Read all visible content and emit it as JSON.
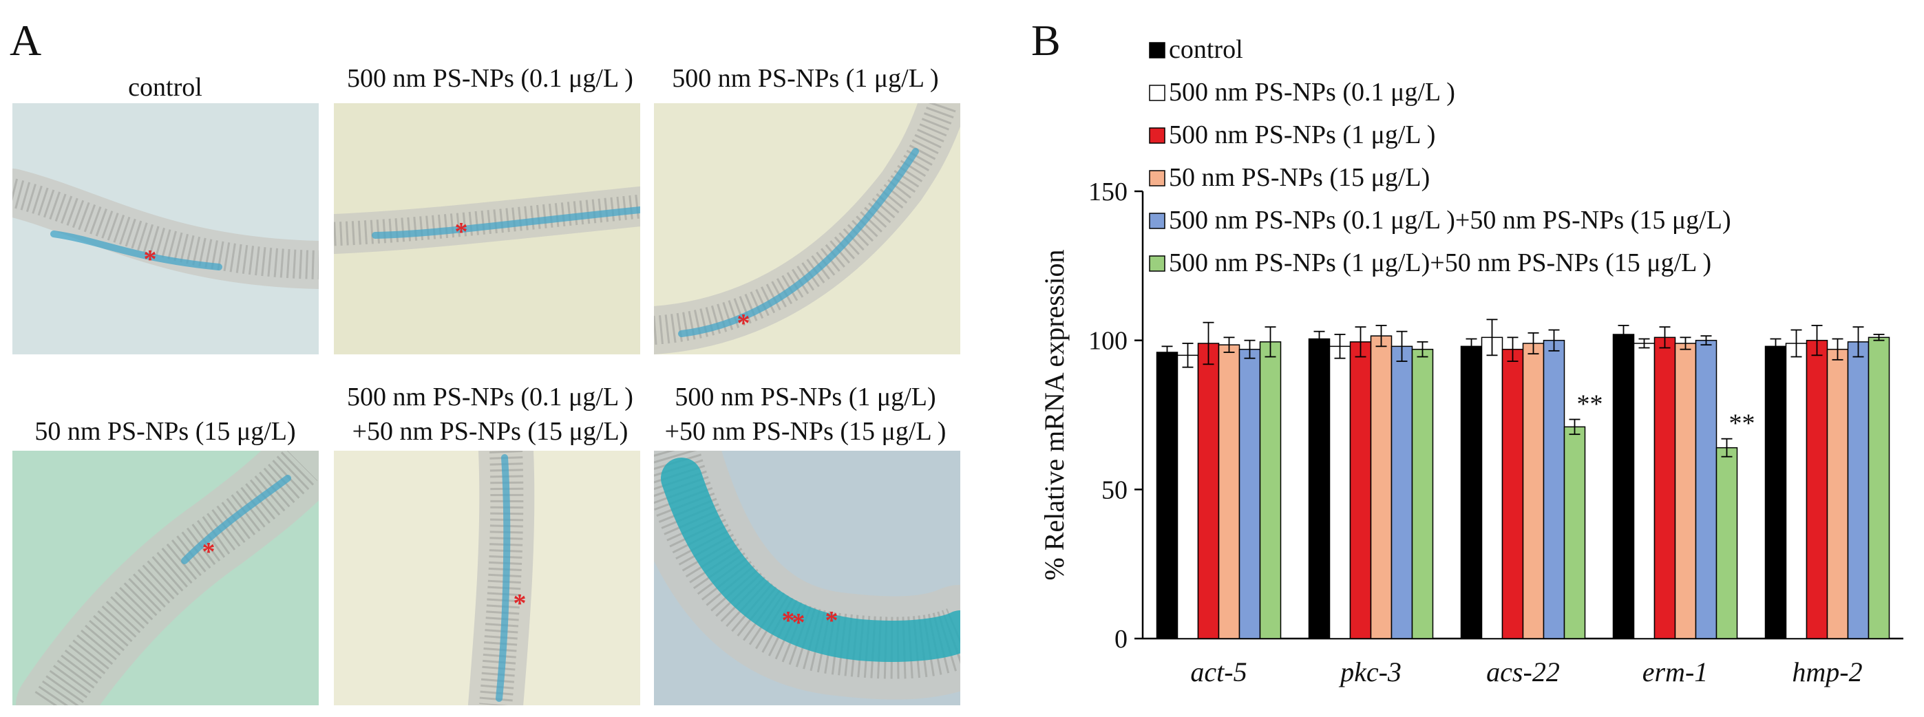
{
  "panel_a": {
    "letter": "A",
    "images": [
      {
        "caption": [
          "control"
        ],
        "bg": "#d5e2e3"
      },
      {
        "caption": [
          "500 nm PS-NPs (0.1 μg/L )"
        ],
        "bg": "#e6e6cc"
      },
      {
        "caption": [
          "500 nm PS-NPs (1 μg/L )"
        ],
        "bg": "#e8e8d0"
      },
      {
        "caption": [
          "50 nm PS-NPs (15 μg/L)"
        ],
        "bg": "#b6dcc8"
      },
      {
        "caption": [
          "500 nm PS-NPs (0.1 μg/L )",
          "+50 nm PS-NPs (15 μg/L)"
        ],
        "bg": "#ecebd6"
      },
      {
        "caption": [
          "500 nm PS-NPs (1 μg/L)",
          "+50 nm PS-NPs (15 μg/L )"
        ],
        "bg": "#bcccd4"
      }
    ],
    "marker": "*",
    "marker_color": "#e0282a"
  },
  "panel_b": {
    "letter": "B"
  },
  "chart_data": {
    "type": "bar",
    "title": "",
    "ylabel": "% Relative mRNA expression",
    "xlabel": "",
    "ylim": [
      0,
      150
    ],
    "yticks": [
      0,
      50,
      100,
      150
    ],
    "categories": [
      "act-5",
      "pkc-3",
      "acs-22",
      "erm-1",
      "hmp-2"
    ],
    "series": [
      {
        "name": "control",
        "color": "#000000",
        "values": [
          96,
          100.5,
          98,
          102,
          98
        ],
        "errors": [
          2,
          2.5,
          2.5,
          3,
          2.5
        ]
      },
      {
        "name": "500 nm PS-NPs (0.1 μg/L )",
        "color": "#ffffff",
        "values": [
          95,
          98,
          101,
          99,
          99
        ],
        "errors": [
          4,
          4,
          6,
          1.5,
          4.5
        ]
      },
      {
        "name": "500 nm PS-NPs (1 μg/L )",
        "color": "#e31e24",
        "values": [
          99,
          99.5,
          97,
          101,
          100
        ],
        "errors": [
          7,
          5,
          4,
          3.5,
          5
        ]
      },
      {
        "name": "50 nm PS-NPs (15 μg/L)",
        "color": "#f5b08c",
        "values": [
          98.5,
          101.5,
          99,
          99,
          97
        ],
        "errors": [
          2.5,
          3.5,
          3.5,
          2,
          3.5
        ]
      },
      {
        "name": "500 nm PS-NPs (0.1 μg/L )+50 nm PS-NPs (15 μg/L)",
        "color": "#7f9ed8",
        "values": [
          97,
          98,
          100,
          100,
          99.5
        ],
        "errors": [
          3,
          5,
          3.5,
          1.5,
          5
        ]
      },
      {
        "name": "500 nm PS-NPs (1 μg/L)+50 nm PS-NPs (15 μg/L )",
        "color": "#9bcf7e",
        "values": [
          99.5,
          97,
          71,
          64,
          101
        ],
        "errors": [
          5,
          2.5,
          2.5,
          3,
          1
        ]
      }
    ],
    "annotations": [
      {
        "category": "acs-22",
        "series": 5,
        "text": "**"
      },
      {
        "category": "erm-1",
        "series": 5,
        "text": "**"
      }
    ],
    "legend": "top-left"
  }
}
